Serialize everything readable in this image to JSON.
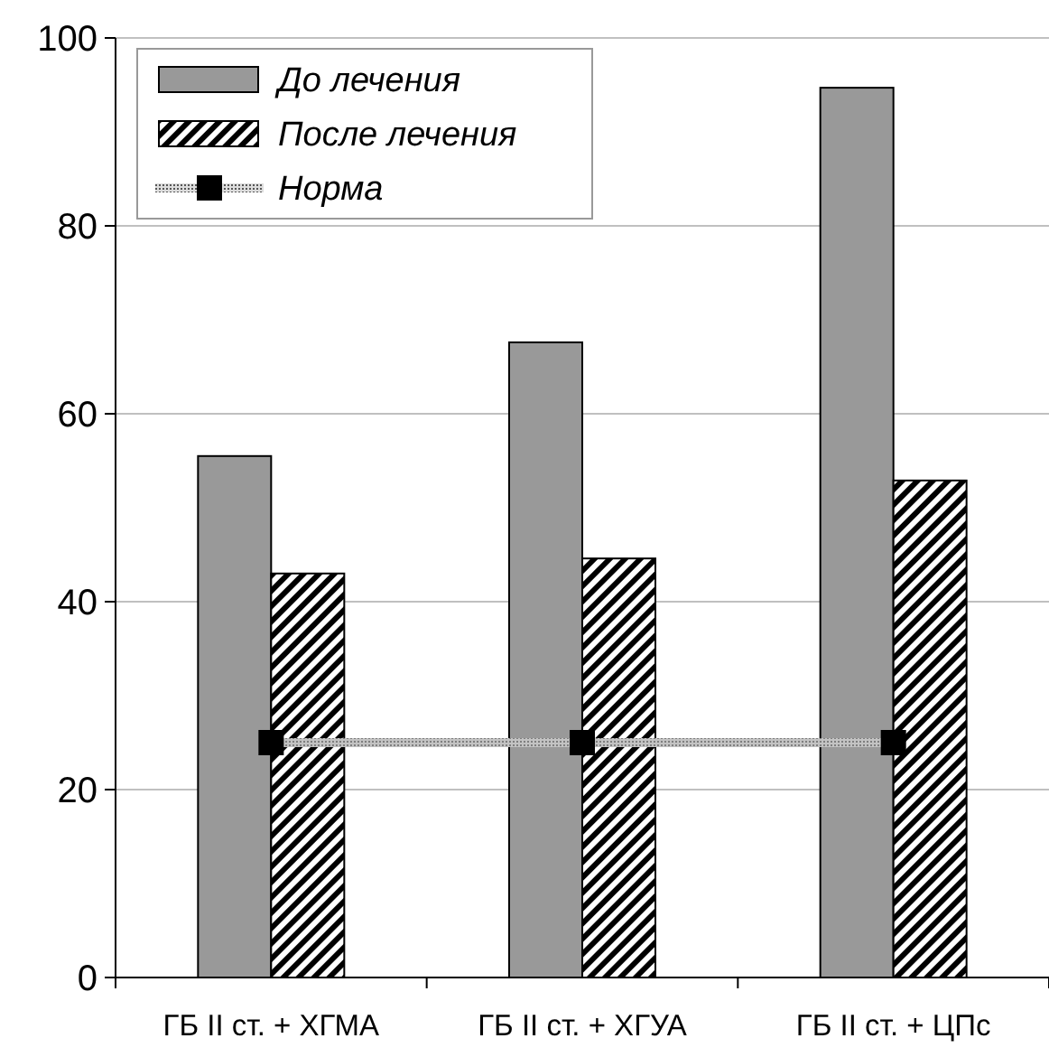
{
  "chart_data": {
    "type": "bar",
    "categories": [
      "ГБ II ст. + ХГМА",
      "ГБ II ст. + ХГУА",
      "ГБ II ст. + ЦПс"
    ],
    "series": [
      {
        "name": "До лечения",
        "color": "#999999",
        "values": [
          55.5,
          67.6,
          94.7
        ]
      },
      {
        "name": "После лечения",
        "color": "#000000",
        "values": [
          43.0,
          44.6,
          52.9
        ]
      },
      {
        "name": "Норма",
        "type": "line",
        "color": "#000000",
        "marker": "square",
        "values": [
          25,
          25,
          25
        ]
      }
    ],
    "ylim": [
      0,
      100
    ],
    "yticks": [
      0,
      20,
      40,
      60,
      80,
      100
    ],
    "grid": "y",
    "legend": "top left"
  }
}
